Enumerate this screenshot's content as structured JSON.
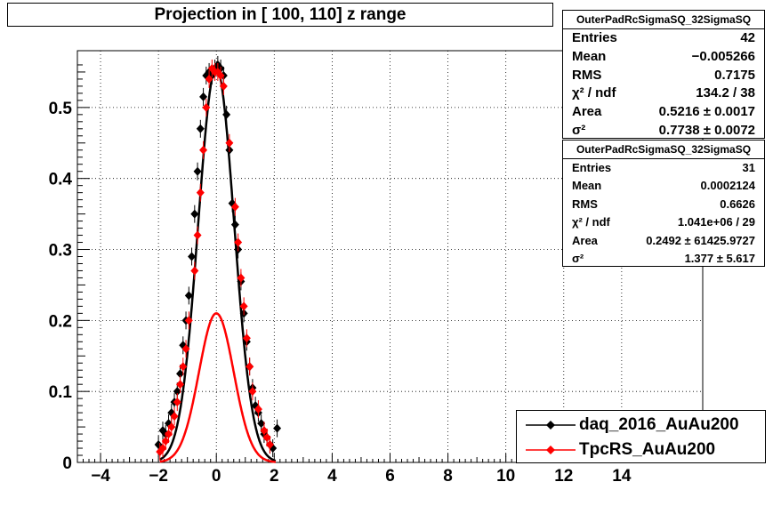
{
  "chart_data": {
    "type": "scatter",
    "title": "Projection in [ 100, 110] z range",
    "xlabel": "",
    "ylabel": "",
    "xlim": [
      -4.8,
      16.8
    ],
    "ylim": [
      0,
      0.58
    ],
    "x_ticks": [
      -4,
      -2,
      0,
      2,
      4,
      6,
      8,
      10,
      12,
      14
    ],
    "x_tick_labels": [
      "−4",
      "−2",
      "0",
      "2",
      "4",
      "6",
      "8",
      "10",
      "12",
      "14"
    ],
    "y_ticks": [
      0,
      0.1,
      0.2,
      0.3,
      0.4,
      0.5
    ],
    "y_tick_labels": [
      "0",
      "0.1",
      "0.2",
      "0.3",
      "0.4",
      "0.5"
    ],
    "grid": true,
    "legend_position": "bottom-right",
    "series": [
      {
        "name": "daq_2016_AuAu200",
        "color": "#000000",
        "marker": "diamond",
        "x": [
          -2.0,
          -1.85,
          -1.75,
          -1.65,
          -1.55,
          -1.45,
          -1.35,
          -1.25,
          -1.15,
          -1.05,
          -0.95,
          -0.85,
          -0.75,
          -0.65,
          -0.55,
          -0.45,
          -0.35,
          -0.25,
          -0.15,
          -0.05,
          0.05,
          0.15,
          0.25,
          0.35,
          0.45,
          0.55,
          0.65,
          0.75,
          0.85,
          0.95,
          1.05,
          1.15,
          1.25,
          1.35,
          1.45,
          1.55,
          1.65,
          1.75,
          1.85,
          1.95,
          2.1
        ],
        "values": [
          0.025,
          0.045,
          0.04,
          0.055,
          0.07,
          0.085,
          0.1,
          0.125,
          0.165,
          0.2,
          0.235,
          0.29,
          0.35,
          0.41,
          0.47,
          0.515,
          0.545,
          0.55,
          0.545,
          0.555,
          0.56,
          0.555,
          0.545,
          0.49,
          0.44,
          0.365,
          0.335,
          0.3,
          0.255,
          0.21,
          0.17,
          0.135,
          0.105,
          0.08,
          0.07,
          0.055,
          0.04,
          0.035,
          0.025,
          0.02,
          0.048
        ]
      },
      {
        "name": "TpcRS_AuAu200",
        "color": "#ff0000",
        "marker": "diamond",
        "x": [
          -1.95,
          -1.85,
          -1.75,
          -1.65,
          -1.55,
          -1.45,
          -1.35,
          -1.25,
          -1.15,
          -1.05,
          -0.95,
          -0.75,
          -0.65,
          -0.55,
          -0.45,
          -0.35,
          -0.25,
          -0.15,
          -0.05,
          0.05,
          0.15,
          0.25,
          0.45,
          0.65,
          0.75,
          0.85,
          0.95,
          1.05,
          1.15,
          1.25,
          1.45,
          1.65,
          1.75,
          1.85
        ],
        "values": [
          0.015,
          0.02,
          0.03,
          0.04,
          0.05,
          0.065,
          0.085,
          0.11,
          0.135,
          0.16,
          0.2,
          0.27,
          0.32,
          0.38,
          0.44,
          0.5,
          0.54,
          0.555,
          0.55,
          0.55,
          0.545,
          0.53,
          0.45,
          0.36,
          0.31,
          0.26,
          0.22,
          0.175,
          0.135,
          0.1,
          0.075,
          0.045,
          0.035,
          0.025
        ]
      }
    ],
    "fit_curves": [
      {
        "color": "#000000",
        "amplitude": 0.556,
        "mean": -0.005,
        "sigma": 0.62,
        "range": [
          -1.95,
          2.05
        ]
      },
      {
        "color": "#ff0000",
        "amplitude": 0.21,
        "mean": 0.0,
        "sigma": 0.6,
        "range": [
          -1.95,
          2.05
        ]
      }
    ]
  },
  "stats1": {
    "header": "OuterPadRcSigmaSQ_32SigmaSQ",
    "rows": [
      {
        "label": "Entries",
        "value": "42"
      },
      {
        "label": "Mean",
        "value": "−0.005266"
      },
      {
        "label": "RMS",
        "value": "0.7175"
      },
      {
        "label": "χ² / ndf",
        "value": "134.2 / 38"
      },
      {
        "label": "Area",
        "value": "0.5216 ± 0.0017"
      },
      {
        "label": "σ²",
        "value": "0.7738 ± 0.0072"
      }
    ]
  },
  "stats2": {
    "header": "OuterPadRcSigmaSQ_32SigmaSQ",
    "rows": [
      {
        "label": "Entries",
        "value": "31"
      },
      {
        "label": "Mean",
        "value": "0.0002124"
      },
      {
        "label": "RMS",
        "value": "0.6626"
      },
      {
        "label": "χ² / ndf",
        "value": "1.041e+06 / 29"
      },
      {
        "label": "Area",
        "value": "0.2492 ± 61425.9727"
      },
      {
        "label": "σ²",
        "value": "1.377 ± 5.617"
      }
    ]
  }
}
